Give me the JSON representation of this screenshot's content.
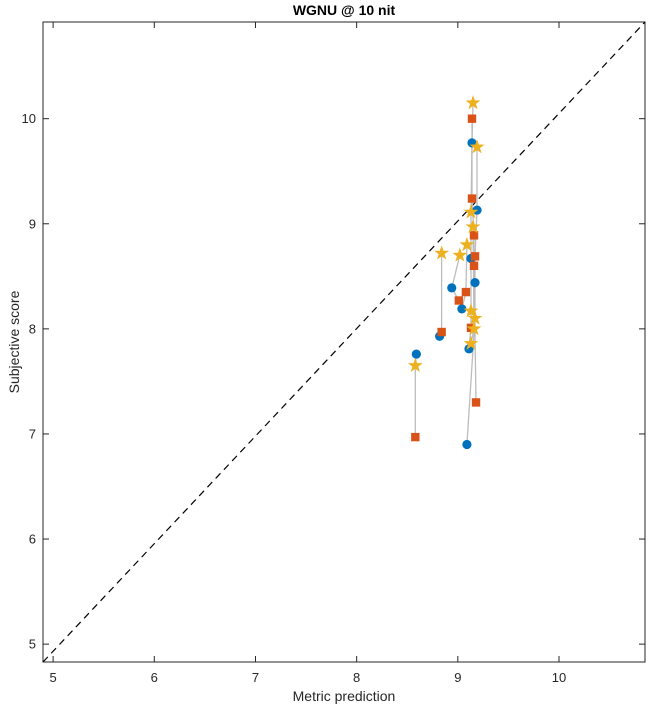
{
  "chart_data": {
    "type": "scatter",
    "title": "WGNU @ 10 nit",
    "xlabel": "Metric prediction",
    "ylabel": "Subjective score",
    "xlim": [
      4.9,
      10.85
    ],
    "ylim": [
      4.83,
      10.92
    ],
    "xticks": [
      5,
      6,
      7,
      8,
      9,
      10
    ],
    "yticks": [
      5,
      6,
      7,
      8,
      9,
      10
    ],
    "grid": false,
    "legend": "none",
    "axis_color": "#262626",
    "background_color": "#ffffff",
    "identity_line": {
      "style": "dashed",
      "color": "#000000",
      "from": [
        4.9,
        4.83
      ],
      "to": [
        10.85,
        10.92
      ]
    },
    "connector_lines": {
      "color": "#BCBCBC",
      "polylines": [
        [
          [
            8.59,
            7.76
          ],
          [
            8.58,
            7.65
          ],
          [
            8.58,
            6.97
          ]
        ],
        [
          [
            8.84,
            8.72
          ],
          [
            8.84,
            7.97
          ],
          [
            8.82,
            7.93
          ]
        ],
        [
          [
            9.02,
            8.7
          ],
          [
            8.94,
            8.39
          ],
          [
            9.01,
            8.27
          ]
        ],
        [
          [
            9.09,
            8.8
          ],
          [
            9.08,
            8.35
          ],
          [
            9.04,
            8.19
          ]
        ],
        [
          [
            9.15,
            10.15
          ],
          [
            9.14,
            9.77
          ],
          [
            9.13,
            9.11
          ],
          [
            9.13,
            8.67
          ],
          [
            9.13,
            8.17
          ],
          [
            9.13,
            8.01
          ],
          [
            9.11,
            7.81
          ]
        ],
        [
          [
            9.14,
            10.0
          ],
          [
            9.14,
            9.24
          ],
          [
            9.16,
            8.89
          ],
          [
            9.16,
            8.6
          ],
          [
            9.18,
            7.3
          ]
        ],
        [
          [
            9.19,
            9.73
          ],
          [
            9.19,
            9.13
          ],
          [
            9.17,
            8.69
          ],
          [
            9.17,
            8.44
          ],
          [
            9.17,
            8.1
          ],
          [
            9.09,
            6.9
          ]
        ],
        [
          [
            9.15,
            8.97
          ],
          [
            9.16,
            8.0
          ],
          [
            9.13,
            7.86
          ]
        ]
      ]
    },
    "series": [
      {
        "name": "circles",
        "marker": "circle",
        "color": "#0072BD",
        "points": [
          [
            9.14,
            9.77
          ],
          [
            9.19,
            9.13
          ],
          [
            9.13,
            8.67
          ],
          [
            9.17,
            8.44
          ],
          [
            8.94,
            8.39
          ],
          [
            9.04,
            8.19
          ],
          [
            9.11,
            7.81
          ],
          [
            8.82,
            7.93
          ],
          [
            8.59,
            7.76
          ],
          [
            9.09,
            6.9
          ]
        ]
      },
      {
        "name": "squares",
        "marker": "square",
        "color": "#D95319",
        "points": [
          [
            9.14,
            10.0
          ],
          [
            9.14,
            9.24
          ],
          [
            9.16,
            8.89
          ],
          [
            9.17,
            8.69
          ],
          [
            9.16,
            8.6
          ],
          [
            9.08,
            8.35
          ],
          [
            9.01,
            8.27
          ],
          [
            9.13,
            8.01
          ],
          [
            8.84,
            7.97
          ],
          [
            9.18,
            7.3
          ],
          [
            8.58,
            6.97
          ]
        ]
      },
      {
        "name": "stars",
        "marker": "pentagram",
        "color": "#EDB120",
        "points": [
          [
            9.15,
            10.15
          ],
          [
            9.19,
            9.73
          ],
          [
            9.13,
            9.11
          ],
          [
            9.15,
            8.97
          ],
          [
            9.09,
            8.8
          ],
          [
            8.84,
            8.72
          ],
          [
            9.02,
            8.7
          ],
          [
            9.13,
            8.17
          ],
          [
            9.17,
            8.1
          ],
          [
            9.16,
            8.0
          ],
          [
            9.13,
            7.86
          ],
          [
            8.58,
            7.65
          ]
        ]
      }
    ]
  }
}
